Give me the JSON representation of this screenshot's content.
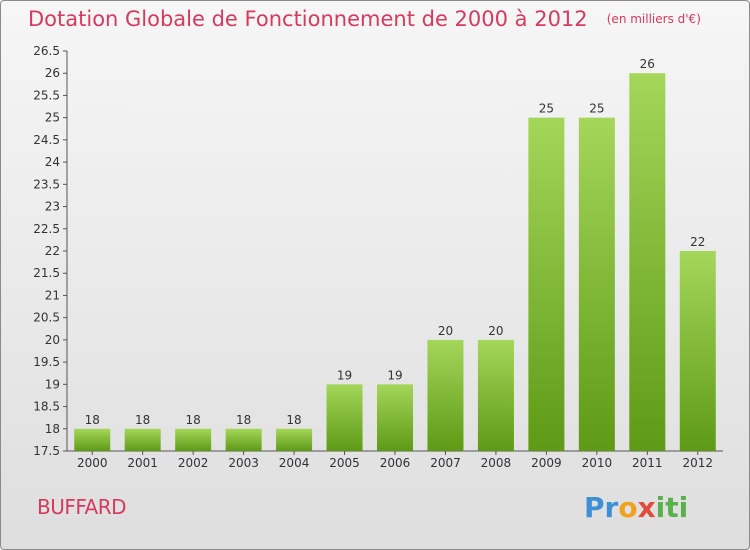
{
  "header": {
    "title": "Dotation Globale de Fonctionnement de 2000 à 2012",
    "unit": "(en milliers d'€)"
  },
  "commune": "BUFFARD",
  "logo": {
    "p1": "Pr",
    "p2": "o",
    "p3": "x",
    "p4": "iti"
  },
  "colors": {
    "bar_top": "#a4d65a",
    "bar_bottom": "#5e9a16",
    "title": "#d63a5f"
  },
  "chart_data": {
    "type": "bar",
    "title": "Dotation Globale de Fonctionnement de 2000 à 2012",
    "subtitle": "(en milliers d'€)",
    "categories": [
      "2000",
      "2001",
      "2002",
      "2003",
      "2004",
      "2005",
      "2006",
      "2007",
      "2008",
      "2009",
      "2010",
      "2011",
      "2012"
    ],
    "values": [
      18,
      18,
      18,
      18,
      18,
      19,
      19,
      20,
      20,
      25,
      25,
      26,
      22
    ],
    "ylim": [
      17.5,
      26.5
    ],
    "yticks": [
      "17.5",
      "18",
      "18.5",
      "19",
      "19.5",
      "20",
      "20.5",
      "21",
      "21.5",
      "22",
      "22.5",
      "23",
      "23.5",
      "24",
      "24.5",
      "25",
      "25.5",
      "26",
      "26.5"
    ],
    "grid": false,
    "legend": "none"
  }
}
